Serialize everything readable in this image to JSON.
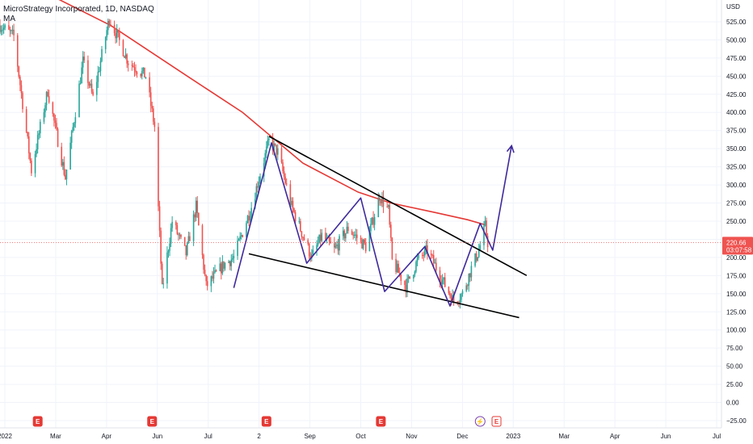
{
  "header": {
    "symbol_line": "MicroStrategy Incorporated, 1D, NASDAQ",
    "indicator": "MA"
  },
  "colors": {
    "up": "#26a69a",
    "down": "#ef5350",
    "ma": "#e53935",
    "pattern": "#3f2a9c",
    "trendline": "#000000",
    "price_line": "#ef5350",
    "event": "#e53935"
  },
  "chart_data": {
    "type": "candlestick",
    "currency_label": "USD",
    "y_axis": {
      "min": -35,
      "max": 555,
      "ticks": [
        525,
        500,
        475,
        450,
        425,
        400,
        375,
        350,
        325,
        300,
        275,
        250,
        225,
        200,
        175,
        150,
        125,
        100,
        75,
        50,
        25,
        0,
        -25
      ],
      "tick_labels": [
        "525.00",
        "500.00",
        "475.00",
        "450.00",
        "425.00",
        "400.00",
        "375.00",
        "350.00",
        "325.00",
        "300.00",
        "275.00",
        "250.00",
        "225.00",
        "200.00",
        "175.00",
        "150.00",
        "125.00",
        "100.00",
        "75.00",
        "50.00",
        "25.00",
        "0.00",
        "−25.00"
      ]
    },
    "x_axis": {
      "labels": [
        "2022",
        "Mar",
        "Apr",
        "Jun",
        "Jul",
        "2",
        "Sep",
        "Oct",
        "Nov",
        "Dec",
        "2023",
        "Mar",
        "Apr",
        "Jun",
        "Jul"
      ],
      "start": "2022-01-03",
      "end": "2023-07-31"
    },
    "last_price": {
      "value": 220.66,
      "label": "220.66",
      "countdown": "03:07:58"
    },
    "anchors": [
      [
        "2022-01-03",
        520
      ],
      [
        "2022-01-14",
        505
      ],
      [
        "2022-01-28",
        320
      ],
      [
        "2022-02-10",
        430
      ],
      [
        "2022-02-24",
        310
      ],
      [
        "2022-03-10",
        470
      ],
      [
        "2022-03-18",
        420
      ],
      [
        "2022-03-31",
        530
      ],
      [
        "2022-04-15",
        470
      ],
      [
        "2022-04-29",
        450
      ],
      [
        "2022-05-06",
        380
      ],
      [
        "2022-05-12",
        155
      ],
      [
        "2022-05-20",
        250
      ],
      [
        "2022-05-31",
        205
      ],
      [
        "2022-06-08",
        270
      ],
      [
        "2022-06-16",
        160
      ],
      [
        "2022-06-30",
        190
      ],
      [
        "2022-07-08",
        200
      ],
      [
        "2022-07-22",
        270
      ],
      [
        "2022-08-05",
        360
      ],
      [
        "2022-08-12",
        345
      ],
      [
        "2022-08-23",
        270
      ],
      [
        "2022-09-01",
        230
      ],
      [
        "2022-09-08",
        200
      ],
      [
        "2022-09-16",
        230
      ],
      [
        "2022-09-26",
        210
      ],
      [
        "2022-10-07",
        240
      ],
      [
        "2022-10-21",
        215
      ],
      [
        "2022-11-01",
        285
      ],
      [
        "2022-11-08",
        265
      ],
      [
        "2022-11-11",
        195
      ],
      [
        "2022-11-22",
        160
      ],
      [
        "2022-12-01",
        195
      ],
      [
        "2022-12-09",
        210
      ],
      [
        "2022-12-22",
        165
      ],
      [
        "2022-12-30",
        140
      ],
      [
        "2023-01-06",
        150
      ],
      [
        "2023-01-13",
        185
      ],
      [
        "2023-01-19",
        210
      ],
      [
        "2023-01-24",
        243
      ],
      [
        "2023-01-26",
        220.66
      ]
    ],
    "moving_average": [
      [
        "2022-02-14",
        560
      ],
      [
        "2022-04-01",
        520
      ],
      [
        "2022-06-01",
        450
      ],
      [
        "2022-07-15",
        400
      ],
      [
        "2022-09-01",
        330
      ],
      [
        "2022-10-15",
        290
      ],
      [
        "2022-11-10",
        275
      ],
      [
        "2022-12-15",
        262
      ],
      [
        "2023-01-10",
        252
      ],
      [
        "2023-01-24",
        245
      ]
    ],
    "trendlines": [
      {
        "name": "upper-trendline",
        "points": [
          [
            "2022-08-05",
            367
          ],
          [
            "2023-02-26",
            175
          ]
        ]
      },
      {
        "name": "lower-trendline",
        "points": [
          [
            "2022-07-20",
            205
          ],
          [
            "2023-02-20",
            117
          ]
        ]
      }
    ],
    "pattern_path": [
      [
        "2022-07-08",
        158
      ],
      [
        "2022-08-07",
        358
      ],
      [
        "2022-09-04",
        192
      ],
      [
        "2022-10-17",
        282
      ],
      [
        "2022-11-05",
        153
      ],
      [
        "2022-12-07",
        215
      ],
      [
        "2022-12-27",
        133
      ],
      [
        "2023-01-20",
        247
      ],
      [
        "2023-01-30",
        210
      ],
      [
        "2023-02-14",
        354
      ]
    ],
    "events": [
      {
        "date": "2022-02-02",
        "label": "E",
        "style": "filled"
      },
      {
        "date": "2022-05-04",
        "label": "E",
        "style": "filled"
      },
      {
        "date": "2022-08-03",
        "label": "E",
        "style": "filled"
      },
      {
        "date": "2022-11-02",
        "label": "E",
        "style": "filled"
      },
      {
        "date": "2023-01-20",
        "label": "⚡",
        "style": "split"
      },
      {
        "date": "2023-02-02",
        "label": "E",
        "style": "outline"
      }
    ]
  }
}
